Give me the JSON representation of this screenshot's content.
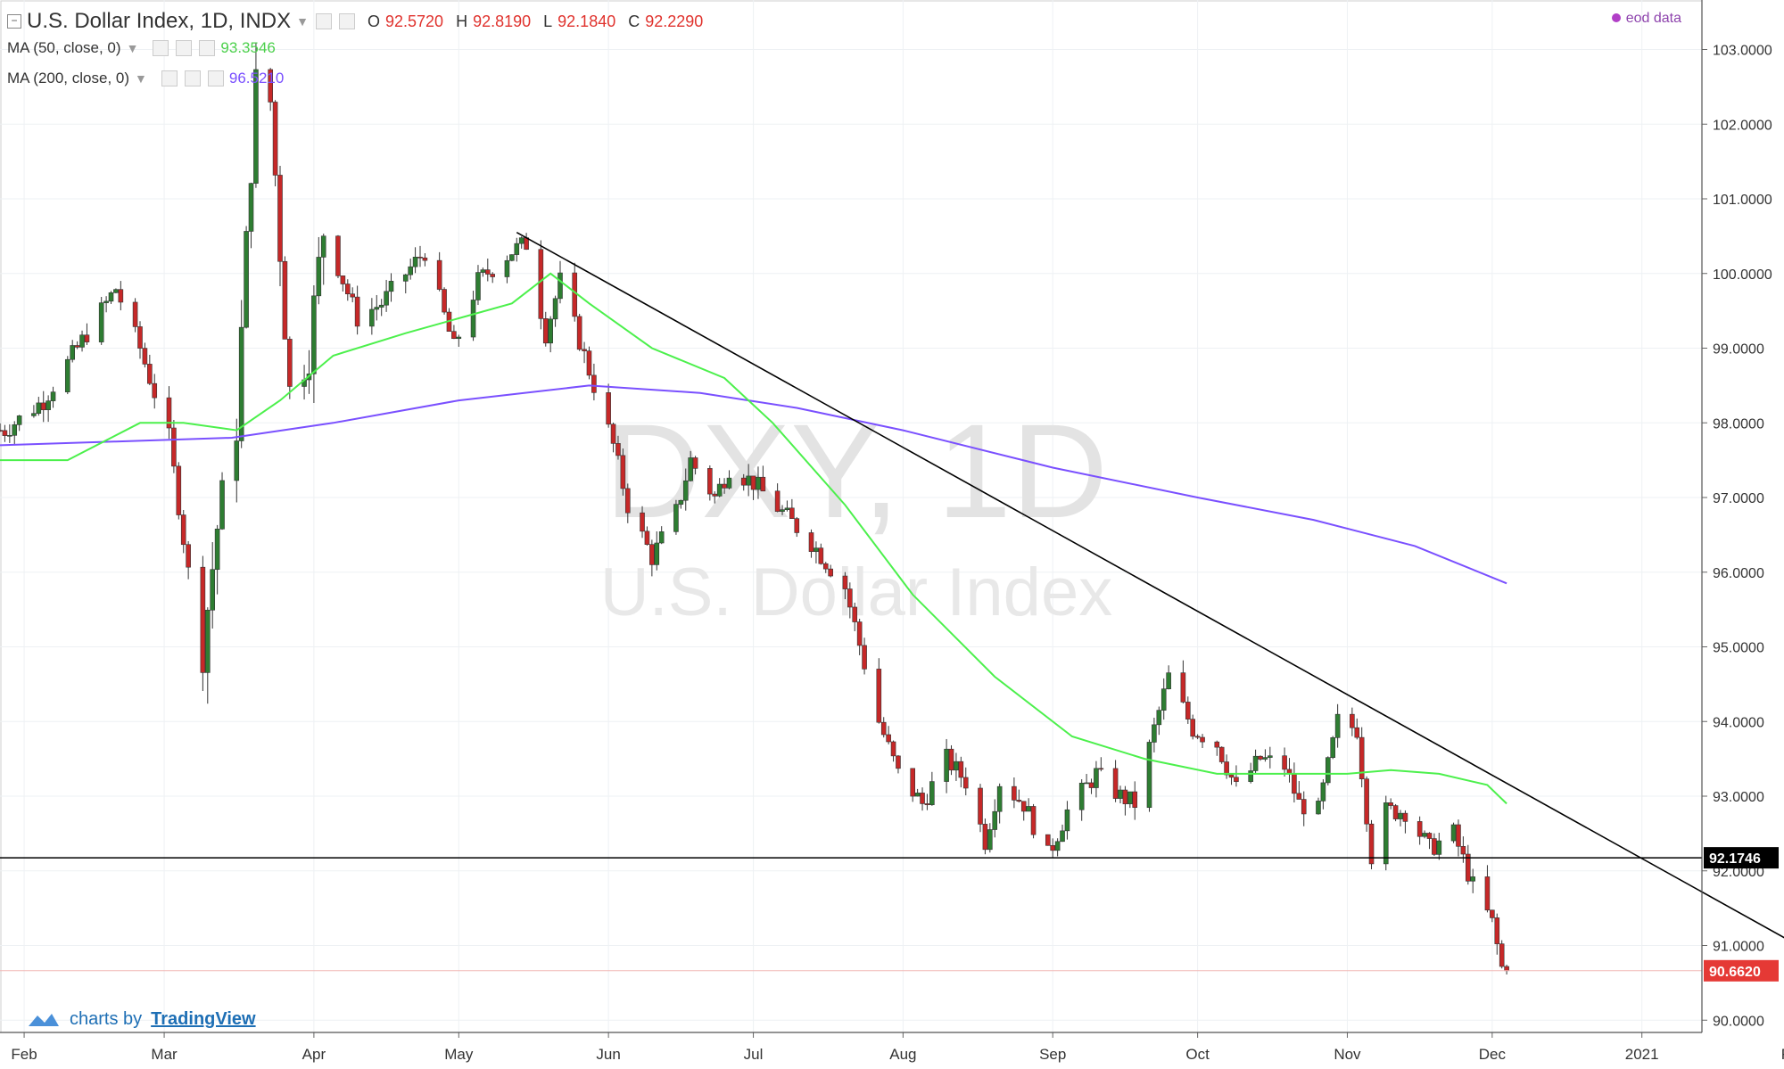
{
  "header": {
    "symbol_title": "U.S. Dollar Index, 1D, INDX",
    "ohlc": {
      "O_label": "O",
      "O": "92.5720",
      "H_label": "H",
      "H": "92.8190",
      "L_label": "L",
      "L": "92.1840",
      "C_label": "C",
      "C": "92.2290"
    },
    "ma50_label": "MA (50, close, 0)",
    "ma50_value": "93.3546",
    "ma200_label": "MA (200, close, 0)",
    "ma200_value": "96.5210",
    "eod_label": "eod data"
  },
  "watermark": {
    "line1": "DXY, 1D",
    "line2": "U.S. Dollar Index"
  },
  "branding": {
    "prefix": "charts by",
    "name": "TradingView"
  },
  "colors": {
    "up": "#2e7d32",
    "down": "#c62828",
    "ma50": "#4cf04c",
    "ma200": "#7a50ff",
    "price_tag": "#e53935",
    "level_tag": "#000000"
  },
  "chart_data": {
    "type": "candlestick",
    "title": "U.S. Dollar Index, 1D, INDX",
    "ylim": [
      89.8,
      103.5
    ],
    "y_ticks": [
      "103.0000",
      "102.0000",
      "101.0000",
      "100.0000",
      "99.0000",
      "98.0000",
      "97.0000",
      "96.0000",
      "95.0000",
      "94.0000",
      "93.0000",
      "92.0000",
      "91.0000",
      "90.0000"
    ],
    "x_labels": [
      "Feb",
      "Mar",
      "Apr",
      "May",
      "Jun",
      "Jul",
      "Aug",
      "Sep",
      "Oct",
      "Nov",
      "Dec",
      "2021",
      "Fel"
    ],
    "horizontal_level": {
      "value": 92.1746,
      "label": "92.1746"
    },
    "last_price": {
      "value": 90.662,
      "label": "90.6620"
    },
    "trendline": {
      "from": {
        "date": "2020-05-13",
        "value": 100.55
      },
      "to": {
        "date": "2021-02-01",
        "value": 91.05
      }
    },
    "keypoints": [
      [
        "2020-01-28",
        97.9
      ],
      [
        "2020-02-05",
        98.3
      ],
      [
        "2020-02-10",
        98.8
      ],
      [
        "2020-02-20",
        99.8
      ],
      [
        "2020-02-25",
        99.0
      ],
      [
        "2020-03-02",
        97.8
      ],
      [
        "2020-03-06",
        96.0
      ],
      [
        "2020-03-09",
        95.0
      ],
      [
        "2020-03-12",
        96.6
      ],
      [
        "2020-03-16",
        98.0
      ],
      [
        "2020-03-19",
        101.5
      ],
      [
        "2020-03-20",
        102.5
      ],
      [
        "2020-03-23",
        102.3
      ],
      [
        "2020-03-27",
        98.4
      ],
      [
        "2020-03-31",
        99.0
      ],
      [
        "2020-04-03",
        100.6
      ],
      [
        "2020-04-10",
        99.4
      ],
      [
        "2020-04-15",
        99.6
      ],
      [
        "2020-04-20",
        100.0
      ],
      [
        "2020-04-24",
        100.3
      ],
      [
        "2020-04-30",
        99.0
      ],
      [
        "2020-05-05",
        99.9
      ],
      [
        "2020-05-12",
        100.3
      ],
      [
        "2020-05-15",
        100.4
      ],
      [
        "2020-05-19",
        99.2
      ],
      [
        "2020-05-22",
        99.9
      ],
      [
        "2020-05-27",
        98.9
      ],
      [
        "2020-06-02",
        97.7
      ],
      [
        "2020-06-05",
        96.9
      ],
      [
        "2020-06-10",
        96.2
      ],
      [
        "2020-06-15",
        96.8
      ],
      [
        "2020-06-18",
        97.5
      ],
      [
        "2020-06-23",
        97.0
      ],
      [
        "2020-06-26",
        97.4
      ],
      [
        "2020-07-01",
        97.2
      ],
      [
        "2020-07-07",
        96.8
      ],
      [
        "2020-07-13",
        96.4
      ],
      [
        "2020-07-20",
        95.8
      ],
      [
        "2020-07-27",
        94.0
      ],
      [
        "2020-07-31",
        93.3
      ],
      [
        "2020-08-05",
        92.9
      ],
      [
        "2020-08-10",
        93.5
      ],
      [
        "2020-08-14",
        93.2
      ],
      [
        "2020-08-18",
        92.4
      ],
      [
        "2020-08-21",
        93.2
      ],
      [
        "2020-08-26",
        92.9
      ],
      [
        "2020-08-31",
        92.2
      ],
      [
        "2020-09-04",
        92.8
      ],
      [
        "2020-09-10",
        93.3
      ],
      [
        "2020-09-15",
        93.0
      ],
      [
        "2020-09-18",
        92.9
      ],
      [
        "2020-09-22",
        93.9
      ],
      [
        "2020-09-25",
        94.6
      ],
      [
        "2020-09-30",
        93.9
      ],
      [
        "2020-10-05",
        93.7
      ],
      [
        "2020-10-09",
        93.1
      ],
      [
        "2020-10-14",
        93.5
      ],
      [
        "2020-10-19",
        93.4
      ],
      [
        "2020-10-22",
        92.9
      ],
      [
        "2020-10-26",
        92.8
      ],
      [
        "2020-10-30",
        94.0
      ],
      [
        "2020-11-03",
        93.9
      ],
      [
        "2020-11-06",
        92.2
      ],
      [
        "2020-11-09",
        92.8
      ],
      [
        "2020-11-13",
        92.8
      ],
      [
        "2020-11-18",
        92.3
      ],
      [
        "2020-11-23",
        92.5
      ],
      [
        "2020-11-27",
        91.8
      ],
      [
        "2020-12-01",
        91.3
      ],
      [
        "2020-12-03",
        90.7
      ],
      [
        "2020-12-04",
        90.66
      ]
    ],
    "ma50_points": [
      [
        "2020-01-27",
        97.5
      ],
      [
        "2020-02-10",
        97.5
      ],
      [
        "2020-02-25",
        98.0
      ],
      [
        "2020-03-05",
        98.0
      ],
      [
        "2020-03-16",
        97.9
      ],
      [
        "2020-03-25",
        98.3
      ],
      [
        "2020-04-05",
        98.9
      ],
      [
        "2020-04-20",
        99.2
      ],
      [
        "2020-05-01",
        99.4
      ],
      [
        "2020-05-12",
        99.6
      ],
      [
        "2020-05-20",
        100.0
      ],
      [
        "2020-05-28",
        99.6
      ],
      [
        "2020-06-10",
        99.0
      ],
      [
        "2020-06-25",
        98.6
      ],
      [
        "2020-07-05",
        98.0
      ],
      [
        "2020-07-20",
        96.9
      ],
      [
        "2020-08-03",
        95.7
      ],
      [
        "2020-08-20",
        94.6
      ],
      [
        "2020-09-05",
        93.8
      ],
      [
        "2020-09-20",
        93.5
      ],
      [
        "2020-10-05",
        93.3
      ],
      [
        "2020-10-20",
        93.3
      ],
      [
        "2020-11-01",
        93.3
      ],
      [
        "2020-11-10",
        93.35
      ],
      [
        "2020-11-20",
        93.3
      ],
      [
        "2020-11-30",
        93.15
      ],
      [
        "2020-12-04",
        92.9
      ]
    ],
    "ma200_points": [
      [
        "2020-01-27",
        97.7
      ],
      [
        "2020-02-20",
        97.75
      ],
      [
        "2020-03-15",
        97.8
      ],
      [
        "2020-04-05",
        98.0
      ],
      [
        "2020-05-01",
        98.3
      ],
      [
        "2020-05-28",
        98.5
      ],
      [
        "2020-06-20",
        98.4
      ],
      [
        "2020-07-10",
        98.2
      ],
      [
        "2020-08-01",
        97.9
      ],
      [
        "2020-09-01",
        97.4
      ],
      [
        "2020-10-01",
        97.0
      ],
      [
        "2020-10-25",
        96.7
      ],
      [
        "2020-11-15",
        96.35
      ],
      [
        "2020-12-04",
        95.85
      ]
    ]
  }
}
